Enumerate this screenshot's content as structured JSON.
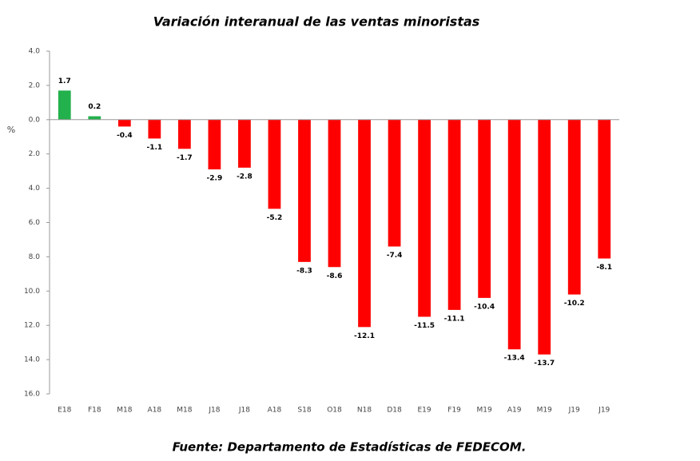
{
  "chart_data": {
    "type": "bar",
    "title": "Variación interanual de las ventas minoristas",
    "y_label": "%",
    "source": "Fuente: Departamento de Estadísticas de FEDECOM.",
    "categories": [
      "E18",
      "F18",
      "M18",
      "A18",
      "M18",
      "J18",
      "J18",
      "A18",
      "S18",
      "O18",
      "N18",
      "D18",
      "E19",
      "F19",
      "M19",
      "A19",
      "M19",
      "J19",
      "J19"
    ],
    "values": [
      1.7,
      0.2,
      -0.4,
      -1.1,
      -1.7,
      -2.9,
      -2.8,
      -5.2,
      -8.3,
      -8.6,
      -12.1,
      -7.4,
      -11.5,
      -11.1,
      -10.4,
      -13.4,
      -13.7,
      -10.2,
      -8.1
    ],
    "colors": [
      "#22b14c",
      "#22b14c",
      "#ff0000",
      "#ff0000",
      "#ff0000",
      "#ff0000",
      "#ff0000",
      "#ff0000",
      "#ff0000",
      "#ff0000",
      "#ff0000",
      "#ff0000",
      "#ff0000",
      "#ff0000",
      "#ff0000",
      "#ff0000",
      "#ff0000",
      "#ff0000",
      "#ff0000"
    ],
    "ylim": [
      -16,
      4
    ],
    "yticks": [
      {
        "value": 4,
        "label": "4.0"
      },
      {
        "value": 2,
        "label": "2.0"
      },
      {
        "value": 0,
        "label": "0.0"
      },
      {
        "value": -2,
        "label": "2.0"
      },
      {
        "value": -4,
        "label": "4.0"
      },
      {
        "value": -6,
        "label": "6.0"
      },
      {
        "value": -8,
        "label": "8.0"
      },
      {
        "value": -10,
        "label": "10.0"
      },
      {
        "value": -12,
        "label": "12.0"
      },
      {
        "value": -14,
        "label": "14.0"
      },
      {
        "value": -16,
        "label": "16.0"
      }
    ],
    "grid": false
  }
}
